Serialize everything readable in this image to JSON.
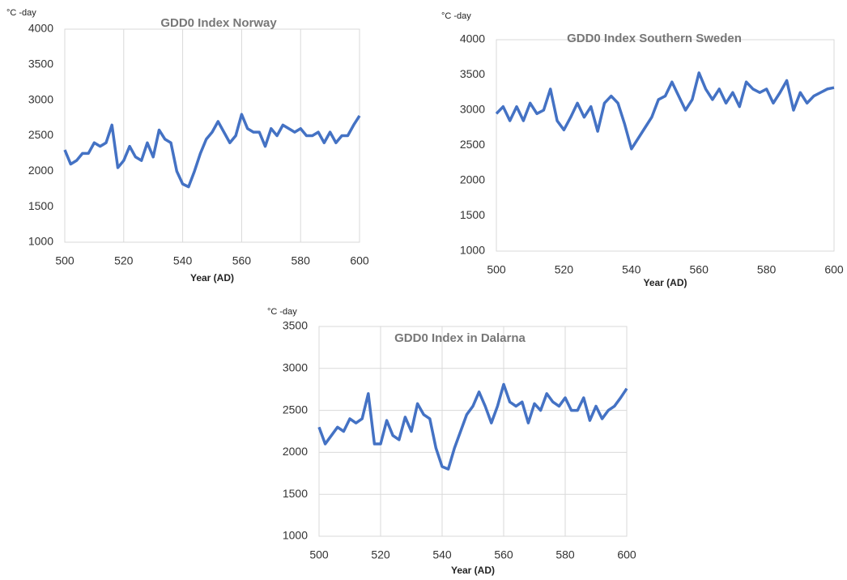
{
  "chart_data": [
    {
      "type": "line",
      "title": "GDD0 Index Norway",
      "ylabel": "°C -day",
      "xlabel": "Year (AD)",
      "x": [
        500,
        502,
        504,
        506,
        508,
        510,
        512,
        514,
        516,
        518,
        520,
        522,
        524,
        526,
        528,
        530,
        532,
        534,
        536,
        538,
        540,
        542,
        544,
        546,
        548,
        550,
        552,
        554,
        556,
        558,
        560,
        562,
        564,
        566,
        568,
        570,
        572,
        574,
        576,
        578,
        580,
        582,
        584,
        586,
        588,
        590,
        592,
        594,
        596,
        598,
        600
      ],
      "series": [
        {
          "color": "#4472c4",
          "values": [
            2300,
            2100,
            2150,
            2250,
            2250,
            2400,
            2350,
            2400,
            2650,
            2050,
            2150,
            2350,
            2200,
            2150,
            2400,
            2200,
            2580,
            2450,
            2400,
            2000,
            1820,
            1780,
            2000,
            2250,
            2450,
            2550,
            2700,
            2550,
            2400,
            2500,
            2800,
            2600,
            2550,
            2550,
            2350,
            2600,
            2500,
            2650,
            2600,
            2550,
            2600,
            2500,
            2500,
            2550,
            2400,
            2550,
            2400,
            2500,
            2500,
            2650,
            2780
          ]
        }
      ],
      "xlim": [
        500,
        600
      ],
      "ylim": [
        1000,
        4000
      ],
      "xticks": [
        500,
        520,
        540,
        560,
        580,
        600
      ],
      "yticks": [
        1000,
        1500,
        2000,
        2500,
        3000,
        3500,
        4000
      ],
      "grid": "x"
    },
    {
      "type": "line",
      "title": "GDD0 Index Southern Sweden",
      "ylabel": "°C -day",
      "xlabel": "Year (AD)",
      "x": [
        500,
        502,
        504,
        506,
        508,
        510,
        512,
        514,
        516,
        518,
        520,
        522,
        524,
        526,
        528,
        530,
        532,
        534,
        536,
        538,
        540,
        542,
        544,
        546,
        548,
        550,
        552,
        554,
        556,
        558,
        560,
        562,
        564,
        566,
        568,
        570,
        572,
        574,
        576,
        578,
        580,
        582,
        584,
        586,
        588,
        590,
        592,
        594,
        596,
        598,
        600
      ],
      "series": [
        {
          "color": "#4472c4",
          "values": [
            2950,
            3050,
            2850,
            3050,
            2850,
            3100,
            2950,
            3000,
            3300,
            2850,
            2720,
            2900,
            3100,
            2900,
            3050,
            2700,
            3100,
            3200,
            3100,
            2800,
            2450,
            2600,
            2750,
            2900,
            3150,
            3200,
            3400,
            3200,
            3000,
            3150,
            3530,
            3300,
            3150,
            3300,
            3100,
            3250,
            3050,
            3400,
            3300,
            3250,
            3300,
            3100,
            3250,
            3420,
            3000,
            3250,
            3100,
            3200,
            3250,
            3300,
            3320
          ]
        }
      ],
      "xlim": [
        500,
        600
      ],
      "ylim": [
        1000,
        4000
      ],
      "xticks": [
        500,
        520,
        540,
        560,
        580,
        600
      ],
      "yticks": [
        1000,
        1500,
        2000,
        2500,
        3000,
        3500,
        4000
      ],
      "grid": "none"
    },
    {
      "type": "line",
      "title": "GDD0 Index in Dalarna",
      "ylabel": "°C -day",
      "xlabel": "Year (AD)",
      "x": [
        500,
        502,
        504,
        506,
        508,
        510,
        512,
        514,
        516,
        518,
        520,
        522,
        524,
        526,
        528,
        530,
        532,
        534,
        536,
        538,
        540,
        542,
        544,
        546,
        548,
        550,
        552,
        554,
        556,
        558,
        560,
        562,
        564,
        566,
        568,
        570,
        572,
        574,
        576,
        578,
        580,
        582,
        584,
        586,
        588,
        590,
        592,
        594,
        596,
        598,
        600
      ],
      "series": [
        {
          "color": "#4472c4",
          "values": [
            2300,
            2100,
            2200,
            2300,
            2250,
            2400,
            2350,
            2400,
            2700,
            2100,
            2100,
            2380,
            2200,
            2150,
            2420,
            2250,
            2580,
            2450,
            2400,
            2050,
            1830,
            1800,
            2050,
            2250,
            2450,
            2550,
            2720,
            2550,
            2350,
            2550,
            2810,
            2600,
            2550,
            2600,
            2350,
            2580,
            2500,
            2700,
            2600,
            2550,
            2650,
            2500,
            2500,
            2650,
            2380,
            2550,
            2400,
            2500,
            2550,
            2650,
            2760
          ]
        }
      ],
      "xlim": [
        500,
        600
      ],
      "ylim": [
        1000,
        3500
      ],
      "xticks": [
        500,
        520,
        540,
        560,
        580,
        600
      ],
      "yticks": [
        1000,
        1500,
        2000,
        2500,
        3000,
        3500
      ],
      "grid": "both"
    }
  ]
}
